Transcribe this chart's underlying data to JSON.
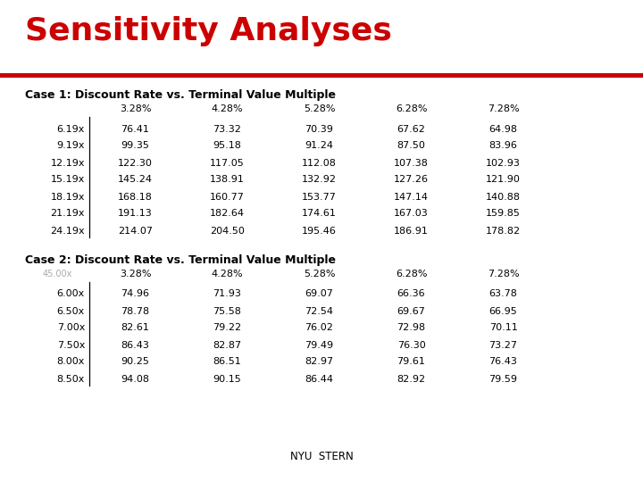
{
  "title": "Sensitivity Analyses",
  "title_color": "#CC0000",
  "bg_color": "#FFFFFF",
  "red_line_color": "#CC0000",
  "case1_label": "Case 1: Discount Rate vs. Terminal Value Multiple",
  "case1_col_headers": [
    "3.28%",
    "4.28%",
    "5.28%",
    "6.28%",
    "7.28%"
  ],
  "case1_row_headers": [
    "6.19x",
    "9.19x",
    "12.19x",
    "15.19x",
    "18.19x",
    "21.19x",
    "24.19x"
  ],
  "case1_data": [
    [
      76.41,
      73.32,
      70.39,
      67.62,
      64.98
    ],
    [
      99.35,
      95.18,
      91.24,
      87.5,
      83.96
    ],
    [
      122.3,
      117.05,
      112.08,
      107.38,
      102.93
    ],
    [
      145.24,
      138.91,
      132.92,
      127.26,
      121.9
    ],
    [
      168.18,
      160.77,
      153.77,
      147.14,
      140.88
    ],
    [
      191.13,
      182.64,
      174.61,
      167.03,
      159.85
    ],
    [
      214.07,
      204.5,
      195.46,
      186.91,
      178.82
    ]
  ],
  "case2_label": "Case 2: Discount Rate vs. Terminal Value Multiple",
  "case2_col_headers": [
    "3.28%",
    "4.28%",
    "5.28%",
    "6.28%",
    "7.28%"
  ],
  "case2_row_headers": [
    "6.00x",
    "6.50x",
    "7.00x",
    "7.50x",
    "8.00x",
    "8.50x"
  ],
  "case2_corner_label": "45.00x",
  "case2_data": [
    [
      74.96,
      71.93,
      69.07,
      66.36,
      63.78
    ],
    [
      78.78,
      75.58,
      72.54,
      69.67,
      66.95
    ],
    [
      82.61,
      79.22,
      76.02,
      72.98,
      70.11
    ],
    [
      86.43,
      82.87,
      79.49,
      76.3,
      73.27
    ],
    [
      90.25,
      86.51,
      82.97,
      79.61,
      76.43
    ],
    [
      94.08,
      90.15,
      86.44,
      82.92,
      79.59
    ]
  ],
  "title_fontsize": 26,
  "case_label_fontsize": 9,
  "header_fontsize": 8,
  "data_fontsize": 8,
  "row_label_fontsize": 8
}
